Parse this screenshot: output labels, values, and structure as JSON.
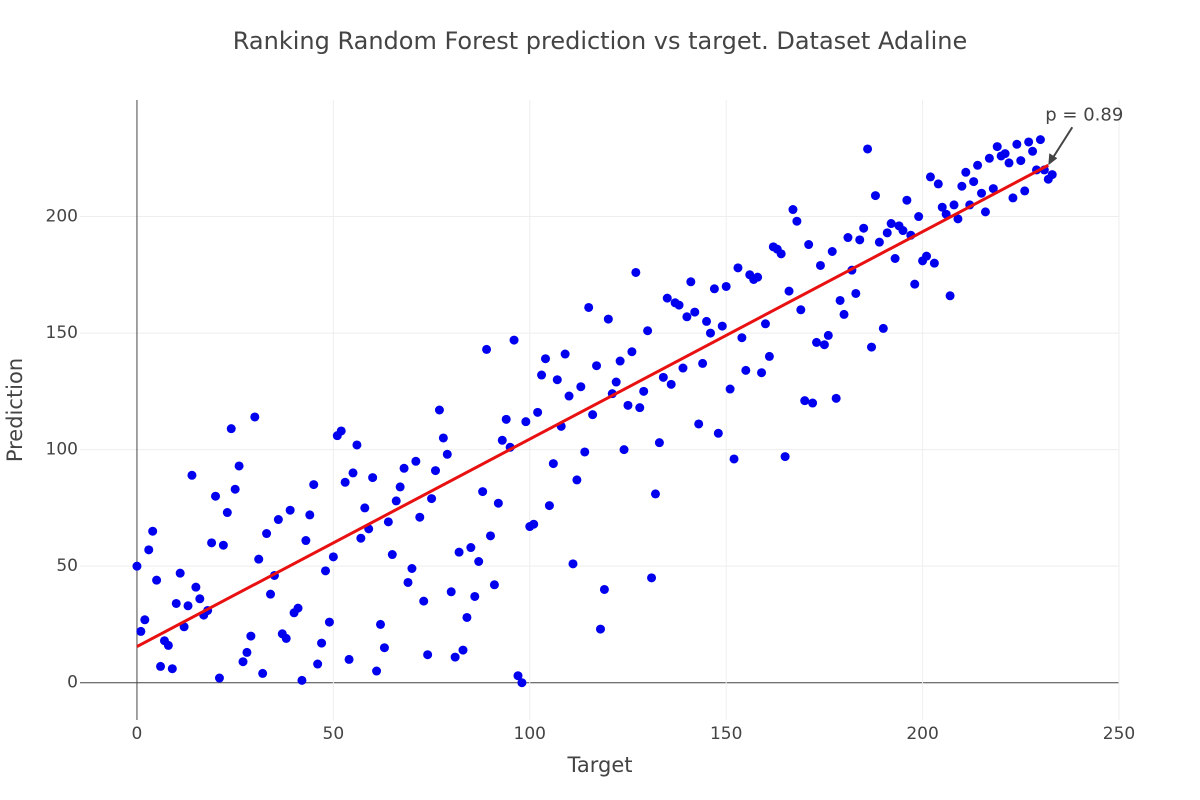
{
  "chart_data": {
    "type": "scatter",
    "title": "Ranking Random Forest prediction vs target. Dataset Adaline",
    "x_label": "Target",
    "y_label": "Prediction",
    "color": "#0000ee",
    "x": [
      0,
      1,
      2,
      3,
      4,
      5,
      6,
      7,
      8,
      9,
      10,
      11,
      12,
      13,
      14,
      15,
      16,
      17,
      18,
      19,
      20,
      21,
      22,
      23,
      24,
      25,
      26,
      27,
      28,
      29,
      30,
      31,
      32,
      33,
      34,
      35,
      36,
      37,
      38,
      39,
      40,
      41,
      42,
      43,
      44,
      45,
      46,
      47,
      48,
      49,
      50,
      51,
      52,
      53,
      54,
      55,
      56,
      57,
      58,
      59,
      60,
      61,
      62,
      63,
      64,
      65,
      66,
      67,
      68,
      69,
      70,
      71,
      72,
      73,
      74,
      75,
      76,
      77,
      78,
      79,
      80,
      81,
      82,
      83,
      84,
      85,
      86,
      87,
      88,
      89,
      90,
      91,
      92,
      93,
      94,
      95,
      96,
      97,
      98,
      99,
      100,
      101,
      102,
      103,
      104,
      105,
      106,
      107,
      108,
      109,
      110,
      111,
      112,
      113,
      114,
      115,
      116,
      117,
      118,
      119,
      120,
      121,
      122,
      123,
      124,
      125,
      126,
      127,
      128,
      129,
      130,
      131,
      132,
      133,
      134,
      135,
      136,
      137,
      138,
      139,
      140,
      141,
      142,
      143,
      144,
      145,
      146,
      147,
      148,
      149,
      150,
      151,
      152,
      153,
      154,
      155,
      156,
      157,
      158,
      159,
      160,
      161,
      162,
      163,
      164,
      165,
      166,
      167,
      168,
      169,
      170,
      171,
      172,
      173,
      174,
      175,
      176,
      177,
      178,
      179,
      180,
      181,
      182,
      183,
      184,
      185,
      186,
      187,
      188,
      189,
      190,
      191,
      192,
      193,
      194,
      195,
      196,
      197,
      198,
      199,
      200,
      201,
      202,
      203,
      204,
      205,
      206,
      207,
      208,
      209,
      210,
      211,
      212,
      213,
      214,
      215,
      216,
      217,
      218,
      219,
      220,
      221,
      222,
      223,
      224,
      225,
      226,
      227,
      228,
      229,
      230,
      231,
      232,
      233
    ],
    "y": [
      50,
      22,
      27,
      57,
      65,
      44,
      7,
      18,
      16,
      6,
      34,
      47,
      24,
      33,
      89,
      41,
      36,
      29,
      31,
      60,
      80,
      2,
      59,
      73,
      109,
      83,
      93,
      9,
      13,
      20,
      114,
      53,
      4,
      64,
      38,
      46,
      70,
      21,
      19,
      74,
      30,
      32,
      1,
      61,
      72,
      85,
      8,
      17,
      48,
      26,
      54,
      106,
      108,
      86,
      10,
      90,
      102,
      62,
      75,
      66,
      88,
      5,
      25,
      15,
      69,
      55,
      78,
      84,
      92,
      43,
      49,
      95,
      71,
      35,
      12,
      79,
      91,
      117,
      105,
      98,
      39,
      11,
      56,
      14,
      28,
      58,
      37,
      52,
      82,
      143,
      63,
      42,
      77,
      104,
      113,
      101,
      147,
      3,
      0,
      112,
      67,
      68,
      116,
      132,
      139,
      76,
      94,
      130,
      110,
      141,
      123,
      51,
      87,
      127,
      99,
      161,
      115,
      136,
      23,
      40,
      156,
      124,
      129,
      138,
      100,
      119,
      142,
      176,
      118,
      125,
      151,
      45,
      81,
      103,
      131,
      165,
      128,
      163,
      162,
      135,
      157,
      172,
      159,
      111,
      137,
      155,
      150,
      169,
      107,
      153,
      170,
      126,
      96,
      178,
      148,
      134,
      175,
      173,
      174,
      133,
      154,
      140,
      187,
      186,
      184,
      97,
      168,
      203,
      198,
      160,
      121,
      188,
      120,
      146,
      179,
      145,
      149,
      185,
      122,
      164,
      158,
      191,
      177,
      167,
      190,
      195,
      229,
      144,
      209,
      189,
      152,
      193,
      197,
      182,
      196,
      194,
      207,
      192,
      171,
      200,
      181,
      183,
      217,
      180,
      214,
      204,
      201,
      166,
      205,
      199,
      213,
      219,
      205,
      215,
      222,
      210,
      202,
      225,
      212,
      230,
      226,
      227,
      223,
      208,
      231,
      224,
      211,
      232,
      228,
      220,
      233,
      220,
      216,
      218
    ],
    "trend_line": {
      "x": [
        0,
        232
      ],
      "y": [
        15.5,
        222
      ],
      "color": "#e81010"
    },
    "annotation": {
      "text": "p = 0.89",
      "x": 232,
      "y": 222
    },
    "xlim": [
      -14.5,
      250
    ],
    "ylim": [
      -16,
      250
    ],
    "xticks": [
      0,
      50,
      100,
      150,
      200,
      250
    ],
    "yticks": [
      0,
      50,
      100,
      150,
      200
    ],
    "grid": true
  }
}
